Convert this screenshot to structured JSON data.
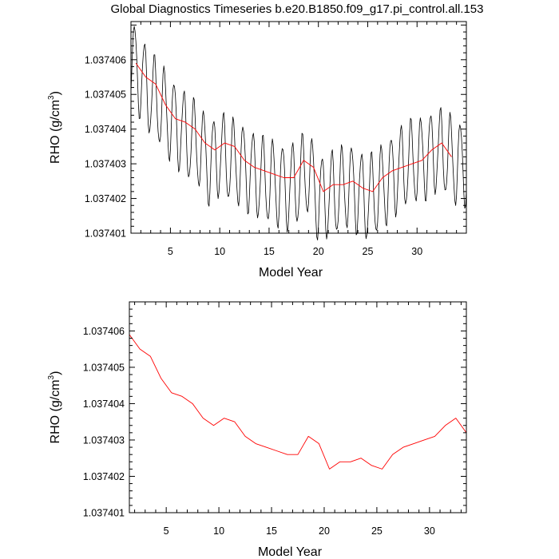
{
  "figure": {
    "title": "Global Diagnostics Timeseries b.e20.B1850.f09_g17.pi_control.all.153"
  },
  "chart_data": [
    {
      "type": "line",
      "xlabel": "Model Year",
      "ylabel": "RHO (g/cm",
      "ylabel_sup": "3",
      "ylabel_close": ")",
      "xlim": [
        1,
        35
      ],
      "ylim": [
        1.037401,
        1.0374071
      ],
      "xticks": [
        5,
        10,
        15,
        20,
        25,
        30
      ],
      "yticks": [
        "1.037401",
        "1.037402",
        "1.037403",
        "1.037404",
        "1.037405",
        "1.037406"
      ],
      "series": [
        {
          "kind": "monthly",
          "color": "#000000",
          "baseline": [
            [
              1,
              1.037406
            ],
            [
              2,
              1.0374055
            ],
            [
              3,
              1.037405
            ],
            [
              4,
              1.0374047
            ],
            [
              5,
              1.0374043
            ],
            [
              6,
              1.037404
            ],
            [
              7,
              1.0374037
            ],
            [
              8,
              1.0374035
            ],
            [
              9,
              1.037403
            ],
            [
              10,
              1.0374033
            ],
            [
              11,
              1.0374031
            ],
            [
              12,
              1.037403
            ],
            [
              13,
              1.0374028
            ],
            [
              14,
              1.0374026
            ],
            [
              15,
              1.0374025
            ],
            [
              16,
              1.0374024
            ],
            [
              17,
              1.0374023
            ],
            [
              18,
              1.0374025
            ],
            [
              19,
              1.0374028
            ],
            [
              20,
              1.037402
            ],
            [
              21,
              1.0374021
            ],
            [
              22,
              1.0374022
            ],
            [
              23,
              1.0374024
            ],
            [
              24,
              1.0374022
            ],
            [
              25,
              1.037402
            ],
            [
              26,
              1.0374022
            ],
            [
              27,
              1.0374025
            ],
            [
              28,
              1.0374028
            ],
            [
              29,
              1.037403
            ],
            [
              30,
              1.0374031
            ],
            [
              31,
              1.0374032
            ],
            [
              32,
              1.0374034
            ],
            [
              33,
              1.0374033
            ],
            [
              34,
              1.037403
            ]
          ],
          "amplitude": 1.2e-06
        },
        {
          "kind": "annual",
          "color": "#ff0000",
          "x": [
            1.5,
            2.5,
            3.5,
            4.5,
            5.5,
            6.5,
            7.5,
            8.5,
            9.5,
            10.5,
            11.5,
            12.5,
            13.5,
            14.5,
            15.5,
            16.5,
            17.5,
            18.5,
            19.5,
            20.5,
            21.5,
            22.5,
            23.5,
            24.5,
            25.5,
            26.5,
            27.5,
            28.5,
            29.5,
            30.5,
            31.5,
            32.5,
            33.5
          ],
          "y": [
            1.0374059,
            1.0374055,
            1.0374053,
            1.0374047,
            1.0374043,
            1.0374042,
            1.037404,
            1.0374036,
            1.0374034,
            1.0374036,
            1.0374035,
            1.0374031,
            1.0374029,
            1.0374028,
            1.0374027,
            1.0374026,
            1.0374026,
            1.0374031,
            1.0374029,
            1.0374022,
            1.0374024,
            1.0374024,
            1.0374025,
            1.0374023,
            1.0374022,
            1.0374026,
            1.0374028,
            1.0374029,
            1.037403,
            1.0374031,
            1.0374034,
            1.0374036,
            1.0374032
          ]
        }
      ]
    },
    {
      "type": "line",
      "xlabel": "Model Year",
      "ylabel": "RHO (g/cm",
      "ylabel_sup": "3",
      "ylabel_close": ")",
      "xlim": [
        1.5,
        33.5
      ],
      "ylim": [
        1.037401,
        1.0374068
      ],
      "xticks": [
        5,
        10,
        15,
        20,
        25,
        30
      ],
      "yticks": [
        "1.037401",
        "1.037402",
        "1.037403",
        "1.037404",
        "1.037405",
        "1.037406"
      ],
      "series": [
        {
          "kind": "annual",
          "color": "#ff0000",
          "x": [
            1.5,
            2.5,
            3.5,
            4.5,
            5.5,
            6.5,
            7.5,
            8.5,
            9.5,
            10.5,
            11.5,
            12.5,
            13.5,
            14.5,
            15.5,
            16.5,
            17.5,
            18.5,
            19.5,
            20.5,
            21.5,
            22.5,
            23.5,
            24.5,
            25.5,
            26.5,
            27.5,
            28.5,
            29.5,
            30.5,
            31.5,
            32.5,
            33.5
          ],
          "y": [
            1.0374059,
            1.0374055,
            1.0374053,
            1.0374047,
            1.0374043,
            1.0374042,
            1.037404,
            1.0374036,
            1.0374034,
            1.0374036,
            1.0374035,
            1.0374031,
            1.0374029,
            1.0374028,
            1.0374027,
            1.0374026,
            1.0374026,
            1.0374031,
            1.0374029,
            1.0374022,
            1.0374024,
            1.0374024,
            1.0374025,
            1.0374023,
            1.0374022,
            1.0374026,
            1.0374028,
            1.0374029,
            1.037403,
            1.0374031,
            1.0374034,
            1.0374036,
            1.0374032
          ]
        }
      ]
    }
  ]
}
